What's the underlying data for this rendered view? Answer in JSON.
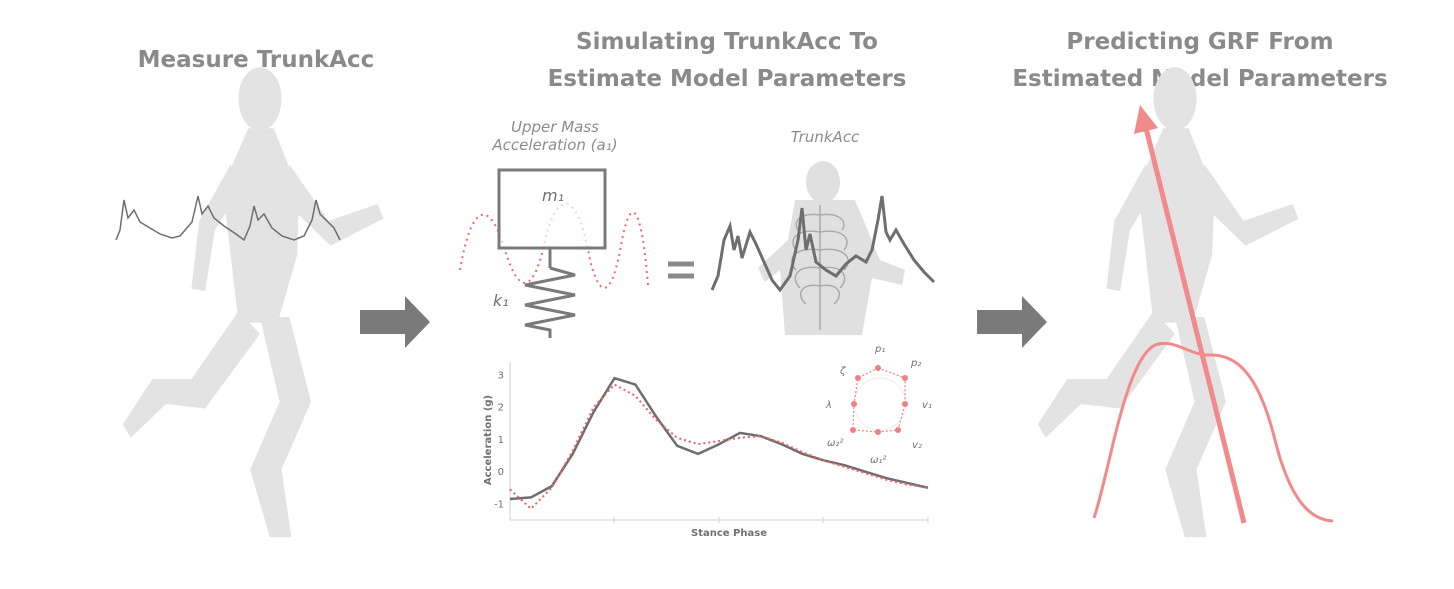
{
  "panels": {
    "left": {
      "title": "Measure TrunkAcc"
    },
    "middle": {
      "title_line1": "Simulating TrunkAcc To",
      "title_line2": "Estimate Model Parameters"
    },
    "right": {
      "title_line1": "Predicting GRF From",
      "title_line2": "Estimated Model Parameters"
    }
  },
  "model": {
    "upper_mass_label_line1": "Upper Mass",
    "upper_mass_label_line2": "Acceleration (a₁)",
    "mass_symbol": "m₁",
    "spring_symbol": "k₁",
    "equals": "=",
    "trunkacc_label": "TrunkAcc"
  },
  "radar": {
    "labels": [
      "p₁",
      "p₂",
      "v₁",
      "v₂",
      "ω₁²",
      "ω₂²",
      "λ",
      "ζ"
    ]
  },
  "colors": {
    "heading": "#8a8a8a",
    "silhouette": "#e3e3e3",
    "trace": "#6e6e6e",
    "model_red": "#f08080",
    "arrow_gray": "#7a7a7a"
  },
  "chart_data": {
    "type": "line",
    "title": "",
    "xlabel": "Stance Phase",
    "ylabel": "Acceleration (g)",
    "ylim": [
      -1.5,
      3.4
    ],
    "yticks": [
      -1,
      0,
      1,
      2,
      3
    ],
    "xlim": [
      0,
      1
    ],
    "series": [
      {
        "x": [
          0,
          0.05,
          0.1,
          0.15,
          0.2,
          0.25,
          0.3,
          0.35,
          0.4,
          0.45,
          0.5,
          0.55,
          0.6,
          0.65,
          0.7,
          0.75,
          0.8,
          0.85,
          0.9,
          0.95,
          1.0
        ],
        "values": [
          -0.85,
          -0.8,
          -0.45,
          0.55,
          1.85,
          2.9,
          2.7,
          1.7,
          0.8,
          0.55,
          0.85,
          1.2,
          1.1,
          0.85,
          0.55,
          0.35,
          0.2,
          0.0,
          -0.2,
          -0.35,
          -0.5
        ],
        "style": "solid",
        "color": "#6e6e6e"
      },
      {
        "x": [
          0,
          0.05,
          0.1,
          0.15,
          0.2,
          0.25,
          0.3,
          0.35,
          0.4,
          0.45,
          0.5,
          0.55,
          0.6,
          0.65,
          0.7,
          0.75,
          0.8,
          0.85,
          0.9,
          0.95,
          1.0
        ],
        "values": [
          -0.55,
          -1.15,
          -0.5,
          0.65,
          2.0,
          2.7,
          2.35,
          1.6,
          1.05,
          0.85,
          0.95,
          1.05,
          1.1,
          0.9,
          0.6,
          0.35,
          0.15,
          -0.05,
          -0.25,
          -0.4,
          -0.5
        ],
        "style": "dotted",
        "color": "#f06060"
      }
    ]
  }
}
